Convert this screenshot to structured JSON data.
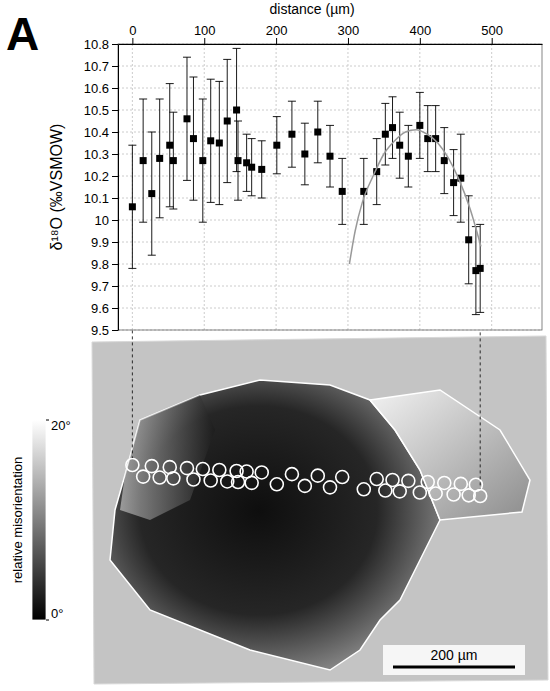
{
  "chart_data": {
    "type": "scatter",
    "panel": "A",
    "x_label": "distance (µm)",
    "y_label": "δ¹⁸O (‰VSMOW)",
    "xlim": [
      -20,
      570
    ],
    "xticks": [
      0,
      100,
      200,
      300,
      400,
      500
    ],
    "ylim": [
      9.5,
      10.8
    ],
    "yticks": [
      9.5,
      9.6,
      9.7,
      9.8,
      9.9,
      10,
      10.1,
      10.2,
      10.3,
      10.4,
      10.5,
      10.6,
      10.7,
      10.8
    ],
    "grid": true,
    "series": [
      {
        "type": "scatter",
        "marker": "square",
        "color": "#000000",
        "x": [
          0,
          15,
          27,
          38,
          52,
          57,
          76,
          85,
          98,
          109,
          121,
          132,
          145,
          147,
          159,
          166,
          180,
          201,
          222,
          240,
          258,
          275,
          292,
          322,
          340,
          352,
          362,
          372,
          384,
          400,
          411,
          422,
          434,
          447,
          457,
          468,
          478,
          484
        ],
        "values": [
          10.06,
          10.27,
          10.12,
          10.28,
          10.34,
          10.27,
          10.46,
          10.37,
          10.27,
          10.36,
          10.35,
          10.45,
          10.5,
          10.27,
          10.26,
          10.24,
          10.23,
          10.34,
          10.39,
          10.3,
          10.4,
          10.29,
          10.13,
          10.13,
          10.22,
          10.39,
          10.42,
          10.34,
          10.29,
          10.43,
          10.37,
          10.37,
          10.27,
          10.17,
          10.19,
          9.91,
          9.77,
          9.78
        ],
        "errors": [
          0.28,
          0.28,
          0.28,
          0.27,
          0.28,
          0.22,
          0.28,
          0.28,
          0.28,
          0.28,
          0.28,
          0.28,
          0.28,
          0.18,
          0.13,
          0.13,
          0.13,
          0.13,
          0.15,
          0.14,
          0.14,
          0.14,
          0.15,
          0.15,
          0.15,
          0.14,
          0.14,
          0.15,
          0.14,
          0.15,
          0.15,
          0.15,
          0.15,
          0.15,
          0.2,
          0.2,
          0.2,
          0.2
        ]
      },
      {
        "type": "line",
        "color": "#999999",
        "x": [
          302,
          310,
          320,
          335,
          350,
          365,
          380,
          395,
          410,
          425,
          440,
          455,
          470,
          485
        ],
        "values": [
          9.8,
          9.95,
          10.08,
          10.2,
          10.3,
          10.36,
          10.4,
          10.41,
          10.39,
          10.35,
          10.28,
          10.18,
          10.05,
          9.88
        ]
      }
    ],
    "colorbar": {
      "label": "relative misorientation",
      "range": [
        0,
        20
      ],
      "ticks": [
        {
          "value": 0,
          "label": "0°"
        },
        {
          "value": 20,
          "label": "20°"
        }
      ]
    },
    "scale_bar": {
      "value": 200,
      "label": "200 µm"
    }
  }
}
